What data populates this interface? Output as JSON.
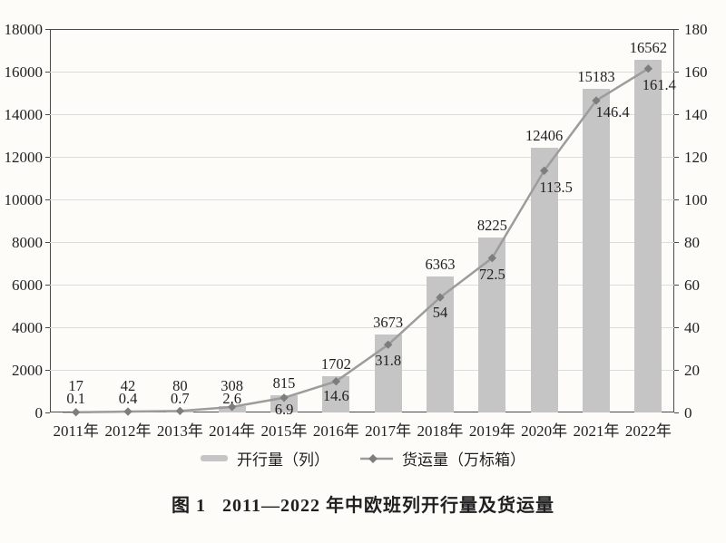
{
  "figure": {
    "caption_prefix": "图 1",
    "caption_text": "2011—2022 年中欧班列开行量及货运量"
  },
  "chart_data": {
    "type": "bar",
    "subtype": "bar+line combo, dual axis",
    "categories": [
      "2011年",
      "2012年",
      "2013年",
      "2014年",
      "2015年",
      "2016年",
      "2017年",
      "2018年",
      "2019年",
      "2020年",
      "2021年",
      "2022年"
    ],
    "series": [
      {
        "name": "开行量（列）",
        "type": "bar",
        "axis": "left",
        "color": "#c5c5c5",
        "values": [
          17,
          42,
          80,
          308,
          815,
          1702,
          3673,
          6363,
          8225,
          12406,
          15183,
          16562
        ]
      },
      {
        "name": "货运量（万标箱）",
        "type": "line",
        "axis": "right",
        "color": "#9c9c9c",
        "marker": "diamond",
        "marker_color": "#7d7d7d",
        "values": [
          0.1,
          0.4,
          0.7,
          2.6,
          6.9,
          14.6,
          31.8,
          54,
          72.5,
          113.5,
          146.4,
          161.4
        ]
      }
    ],
    "left_axis": {
      "min": 0,
      "max": 18000,
      "step": 2000
    },
    "right_axis": {
      "min": 0,
      "max": 180,
      "step": 20
    },
    "grid": true,
    "data_labels": true,
    "legend_position": "bottom",
    "colors": {
      "bar": "#c5c5c5",
      "line": "#9c9c9c",
      "marker": "#7d7d7d",
      "gridline": "#dcdcdc",
      "axis_border": "#4a4a4a",
      "text": "#1f1f1f",
      "background": "#fdfcf8"
    }
  }
}
